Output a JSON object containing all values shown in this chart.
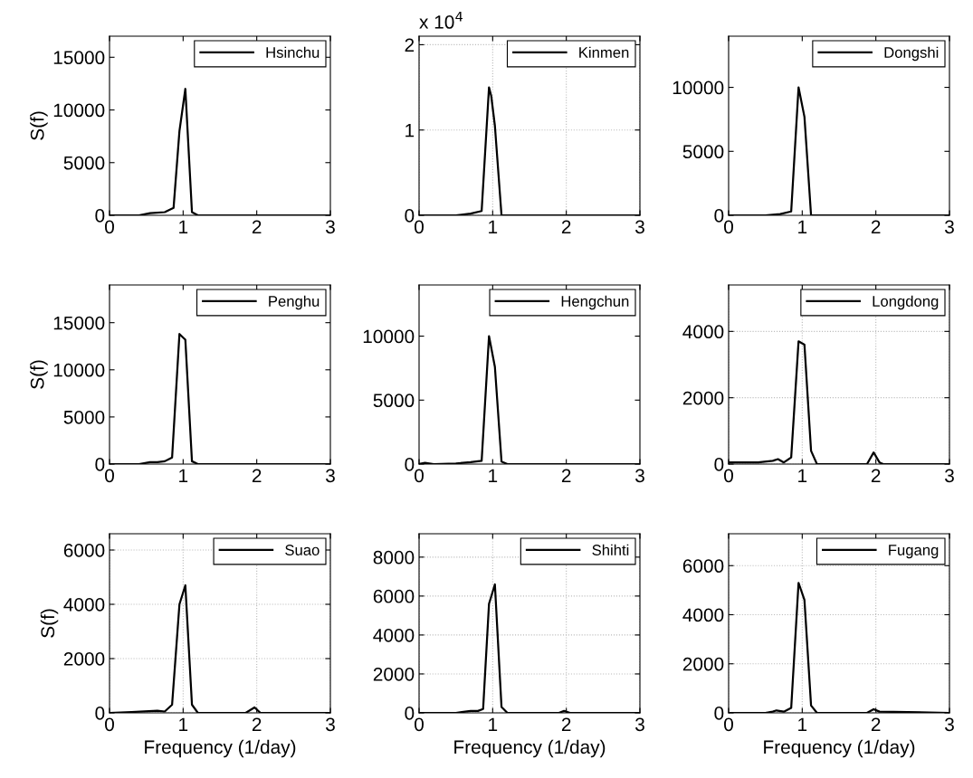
{
  "chart_data": [
    {
      "type": "line",
      "ylabel": "S(f)",
      "x": [
        0,
        0.4,
        0.55,
        0.75,
        0.87,
        0.95,
        1.03,
        1.12,
        1.2,
        3
      ],
      "series": [
        {
          "name": "Hsinchu",
          "color": "#000000",
          "values": [
            0,
            0,
            200,
            300,
            700,
            8000,
            12000,
            300,
            0,
            0
          ]
        }
      ],
      "xlim": [
        0,
        3
      ],
      "ylim": [
        0,
        17000
      ],
      "xticks": [
        0,
        1,
        2,
        3
      ],
      "yticks": [
        0,
        5000,
        10000,
        15000
      ],
      "legend": "top right",
      "grid": false
    },
    {
      "type": "line",
      "annotations": [
        "x 10$^{4}$"
      ],
      "x": [
        0,
        0.5,
        0.7,
        0.85,
        0.95,
        0.98,
        1.03,
        1.12,
        3
      ],
      "series": [
        {
          "name": "Kinmen",
          "color": "#000000",
          "values": [
            0,
            0,
            0.02,
            0.05,
            1.5,
            1.4,
            1.05,
            0,
            0
          ]
        }
      ],
      "xlim": [
        0,
        3
      ],
      "ylim": [
        0,
        2.1
      ],
      "xticks": [
        0,
        1,
        2,
        3
      ],
      "yticks": [
        0,
        1,
        2
      ],
      "legend": "top right",
      "grid": true
    },
    {
      "type": "line",
      "x": [
        0,
        0.5,
        0.7,
        0.85,
        0.95,
        1.03,
        1.12,
        3
      ],
      "series": [
        {
          "name": "Dongshi",
          "color": "#000000",
          "values": [
            0,
            0,
            100,
            300,
            10000,
            7700,
            0,
            0
          ]
        }
      ],
      "xlim": [
        0,
        3
      ],
      "ylim": [
        0,
        14000
      ],
      "xticks": [
        0,
        1,
        2,
        3
      ],
      "yticks": [
        0,
        5000,
        10000
      ],
      "legend": "top right",
      "grid": false
    },
    {
      "type": "line",
      "ylabel": "S(f)",
      "x": [
        0,
        0.4,
        0.55,
        0.65,
        0.75,
        0.85,
        0.95,
        1.03,
        1.12,
        1.2,
        3
      ],
      "series": [
        {
          "name": "Penghu",
          "color": "#000000",
          "values": [
            0,
            0,
            200,
            200,
            300,
            700,
            13800,
            13200,
            300,
            0,
            0
          ]
        }
      ],
      "xlim": [
        0,
        3
      ],
      "ylim": [
        0,
        19000
      ],
      "xticks": [
        0,
        1,
        2,
        3
      ],
      "yticks": [
        0,
        5000,
        10000,
        15000
      ],
      "legend": "top right",
      "grid": false
    },
    {
      "type": "line",
      "x": [
        0,
        0.08,
        0.2,
        0.5,
        0.7,
        0.85,
        0.95,
        1.03,
        1.12,
        1.2,
        3
      ],
      "series": [
        {
          "name": "Hengchun",
          "color": "#000000",
          "values": [
            0,
            100,
            0,
            50,
            150,
            250,
            10000,
            7600,
            200,
            0,
            0
          ]
        }
      ],
      "xlim": [
        0,
        3
      ],
      "ylim": [
        0,
        14000
      ],
      "xticks": [
        0,
        1,
        2,
        3
      ],
      "yticks": [
        0,
        5000,
        10000
      ],
      "legend": "top right",
      "grid": false
    },
    {
      "type": "line",
      "x": [
        0,
        0.4,
        0.6,
        0.67,
        0.75,
        0.85,
        0.95,
        1.03,
        1.12,
        1.2,
        1.88,
        1.97,
        2.05,
        2.1,
        3
      ],
      "series": [
        {
          "name": "Longdong",
          "color": "#000000",
          "values": [
            50,
            50,
            100,
            150,
            50,
            200,
            3700,
            3600,
            400,
            0,
            0,
            350,
            50,
            0,
            0
          ]
        }
      ],
      "xlim": [
        0,
        3
      ],
      "ylim": [
        0,
        5400
      ],
      "xticks": [
        0,
        1,
        2,
        3
      ],
      "yticks": [
        0,
        2000,
        4000
      ],
      "legend": "top right",
      "grid": true
    },
    {
      "type": "line",
      "ylabel": "S(f)",
      "xlabel": "Frequency (1/day)",
      "x": [
        0,
        0.3,
        0.65,
        0.75,
        0.85,
        0.95,
        1.03,
        1.12,
        1.2,
        1.85,
        1.97,
        2.05,
        3
      ],
      "series": [
        {
          "name": "Suao",
          "color": "#000000",
          "values": [
            0,
            30,
            80,
            50,
            300,
            4000,
            4700,
            300,
            0,
            0,
            200,
            0,
            0
          ]
        }
      ],
      "xlim": [
        0,
        3
      ],
      "ylim": [
        0,
        6600
      ],
      "xticks": [
        0,
        1,
        2,
        3
      ],
      "yticks": [
        0,
        2000,
        4000,
        6000
      ],
      "legend": "top right",
      "grid": true
    },
    {
      "type": "line",
      "xlabel": "Frequency (1/day)",
      "x": [
        0,
        0.5,
        0.7,
        0.8,
        0.87,
        0.95,
        1.03,
        1.12,
        1.2,
        1.9,
        1.97,
        2.05,
        3
      ],
      "series": [
        {
          "name": "Shihti",
          "color": "#000000",
          "values": [
            0,
            0,
            100,
            100,
            200,
            5600,
            6600,
            300,
            0,
            0,
            100,
            0,
            0
          ]
        }
      ],
      "xlim": [
        0,
        3
      ],
      "ylim": [
        0,
        9200
      ],
      "xticks": [
        0,
        1,
        2,
        3
      ],
      "yticks": [
        0,
        2000,
        4000,
        6000,
        8000
      ],
      "legend": "top right",
      "grid": true
    },
    {
      "type": "line",
      "xlabel": "Frequency (1/day)",
      "x": [
        0,
        0.5,
        0.6,
        0.65,
        0.75,
        0.85,
        0.95,
        1.03,
        1.12,
        1.2,
        1.88,
        1.97,
        2.05,
        3
      ],
      "series": [
        {
          "name": "Fugang",
          "color": "#000000",
          "values": [
            0,
            0,
            50,
            100,
            50,
            200,
            5300,
            4600,
            300,
            0,
            0,
            150,
            50,
            0
          ]
        }
      ],
      "xlim": [
        0,
        3
      ],
      "ylim": [
        0,
        7300
      ],
      "xticks": [
        0,
        1,
        2,
        3
      ],
      "yticks": [
        0,
        2000,
        4000,
        6000
      ],
      "legend": "top right",
      "grid": true
    }
  ]
}
